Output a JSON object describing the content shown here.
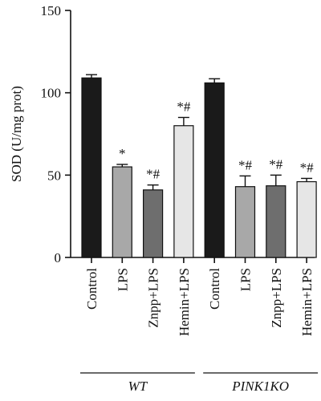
{
  "chart_data": {
    "type": "bar",
    "ylabel": "SOD (U/mg prot)",
    "ylim": [
      0,
      150
    ],
    "yticks": [
      0,
      50,
      100,
      150
    ],
    "categories": [
      "Control",
      "LPS",
      "Znpp+LPS",
      "Hemin+LPS",
      "Control",
      "LPS",
      "Znpp+LPS",
      "Hemin+LPS"
    ],
    "values": [
      109,
      55,
      41,
      80,
      106,
      43,
      43.5,
      46
    ],
    "errors": [
      2,
      1.5,
      3,
      5,
      2.5,
      6.5,
      6.5,
      2
    ],
    "annotations": [
      "",
      "*",
      "*#",
      "*#",
      "",
      "*#",
      "*#",
      "*#"
    ],
    "fills": [
      "#1a1a1a",
      "#a8a8a8",
      "#6e6e6e",
      "#e6e6e6",
      "#1a1a1a",
      "#a8a8a8",
      "#6e6e6e",
      "#e6e6e6"
    ],
    "groups": [
      {
        "label": "WT",
        "start": 0,
        "end": 3
      },
      {
        "label": "PINK1KO",
        "start": 4,
        "end": 7
      }
    ]
  }
}
